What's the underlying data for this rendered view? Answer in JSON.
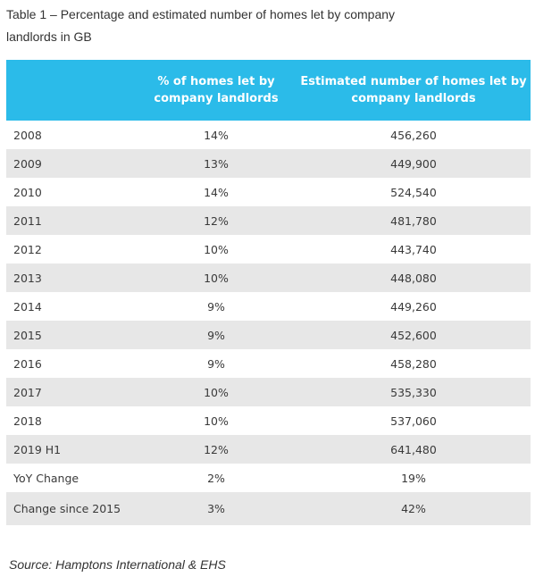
{
  "caption": "Table 1 – Percentage and estimated number of homes let by company landlords in GB",
  "header": {
    "col_year": "",
    "col_pct": "% of homes let by company landlords",
    "col_est": "Estimated number of homes let by company landlords"
  },
  "rows": [
    {
      "year": "2008",
      "pct": "14%",
      "est": "456,260"
    },
    {
      "year": "2009",
      "pct": "13%",
      "est": "449,900"
    },
    {
      "year": "2010",
      "pct": "14%",
      "est": "524,540"
    },
    {
      "year": "2011",
      "pct": "12%",
      "est": "481,780"
    },
    {
      "year": "2012",
      "pct": "10%",
      "est": "443,740"
    },
    {
      "year": "2013",
      "pct": "10%",
      "est": "448,080"
    },
    {
      "year": "2014",
      "pct": "9%",
      "est": "449,260"
    },
    {
      "year": "2015",
      "pct": "9%",
      "est": "452,600"
    },
    {
      "year": "2016",
      "pct": "9%",
      "est": "458,280"
    },
    {
      "year": "2017",
      "pct": "10%",
      "est": "535,330"
    },
    {
      "year": "2018",
      "pct": "10%",
      "est": "537,060"
    },
    {
      "year": "2019 H1",
      "pct": "12%",
      "est": "641,480"
    },
    {
      "year": "YoY Change",
      "pct": "2%",
      "est": "19%"
    },
    {
      "year": "Change since 2015",
      "pct": "3%",
      "est": "42%"
    }
  ],
  "source": "Source: Hamptons International & EHS",
  "colors": {
    "header_bg": "#2bbbe9",
    "stripe_bg": "#e7e7e7"
  }
}
